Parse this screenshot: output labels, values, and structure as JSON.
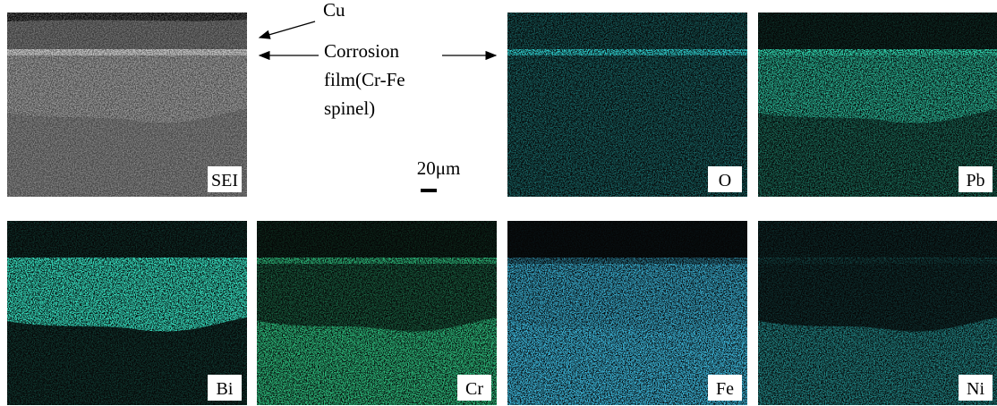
{
  "figure": {
    "annotations": [
      "Cu",
      "Corrosion",
      "film(Cr-Fe",
      "spinel)"
    ],
    "scale_bar": "20μm",
    "panels": [
      {
        "label": "SEI"
      },
      {
        "label": "O"
      },
      {
        "label": "Pb"
      },
      {
        "label": "Bi"
      },
      {
        "label": "Cr"
      },
      {
        "label": "Fe"
      },
      {
        "label": "Ni"
      }
    ]
  }
}
